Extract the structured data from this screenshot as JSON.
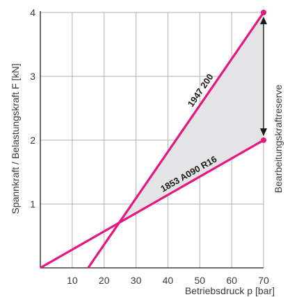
{
  "chart_data": {
    "type": "line",
    "xlabel": "Betriebsdruck p [bar]",
    "ylabel": "Spannkraft / Belastungskraft F [kN]",
    "xlim": [
      0,
      70
    ],
    "ylim": [
      0,
      4
    ],
    "x_ticks": [
      "10",
      "20",
      "30",
      "40",
      "50",
      "60",
      "70"
    ],
    "y_ticks": [
      "1",
      "2",
      "3",
      "4"
    ],
    "grid": true,
    "series": [
      {
        "name": "1947 200",
        "points": [
          [
            15,
            0
          ],
          [
            70,
            4
          ]
        ],
        "color": "#e6157f"
      },
      {
        "name": "1853 A090 R16",
        "points": [
          [
            0,
            0
          ],
          [
            70,
            2
          ]
        ],
        "color": "#e6157f"
      }
    ],
    "annotation": "Bearbeitungskraftreserve",
    "reserve_fill": "#e4e4e6",
    "grid_color": "#b0b0b0"
  }
}
